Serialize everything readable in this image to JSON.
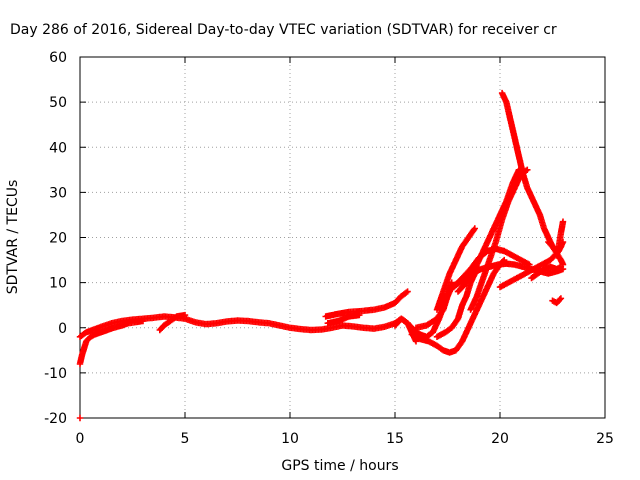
{
  "chart_data": {
    "type": "scatter",
    "title": "Day 286 of 2016, Sidereal Day-to-day VTEC variation (SDTVAR) for receiver cr",
    "xlabel": "GPS time / hours",
    "ylabel": "SDTVAR / TECUs",
    "xlim": [
      0,
      25
    ],
    "ylim": [
      -20,
      60
    ],
    "xticks": [
      0,
      5,
      10,
      15,
      20,
      25
    ],
    "yticks": [
      -20,
      -10,
      0,
      10,
      20,
      30,
      40,
      50,
      60
    ],
    "grid": true,
    "marker": "plus",
    "color": "#ff0000",
    "series": [
      {
        "x": [
          0,
          0.3,
          0.6,
          1.0,
          1.5,
          2.0,
          2.5,
          3.0,
          3.5,
          4.0,
          4.5,
          5.0,
          5.5,
          6.0,
          6.5,
          7.0,
          7.5,
          8.0,
          8.5,
          9.0,
          9.5,
          10.0,
          10.5,
          11.0,
          11.5,
          12.0,
          12.5,
          13.0,
          13.5,
          14.0,
          14.5,
          15.0,
          15.3,
          15.6,
          15.9,
          16.2,
          16.5,
          16.8,
          17.1,
          17.4,
          17.7,
          18.0
        ],
        "y": [
          -2,
          -1,
          -0.5,
          0.2,
          1.0,
          1.5,
          1.8,
          2.0,
          2.2,
          2.5,
          2.3,
          2.0,
          1.2,
          0.8,
          1.0,
          1.4,
          1.6,
          1.5,
          1.2,
          1.0,
          0.5,
          0,
          -0.3,
          -0.5,
          -0.4,
          0,
          0.5,
          0.3,
          0,
          -0.2,
          0.2,
          1.0,
          2.0,
          1.0,
          -0.5,
          -1.5,
          -2.0,
          -1.0,
          2.0,
          6.0,
          9.0,
          10.0
        ]
      },
      {
        "x": [
          0,
          0.1,
          0.2,
          0.3,
          0.5,
          0.7,
          1.0,
          1.3,
          1.6,
          2.0,
          2.3,
          2.6,
          3.0
        ],
        "y": [
          -8,
          -6,
          -4.5,
          -3,
          -2,
          -1.5,
          -1,
          -0.5,
          0,
          0.5,
          1.0,
          1.2,
          1.5
        ]
      },
      {
        "x": [
          3.8,
          4.0,
          4.3,
          4.6,
          5.0
        ],
        "y": [
          -0.5,
          0.5,
          1.5,
          2.5,
          2.8
        ]
      },
      {
        "x": [
          11.7,
          12.2,
          12.8,
          13.4,
          14.0,
          14.5,
          15.0,
          15.3,
          15.6
        ],
        "y": [
          2.5,
          3.0,
          3.5,
          3.7,
          4.0,
          4.5,
          5.5,
          7.0,
          8.0
        ]
      },
      {
        "x": [
          11.8,
          12.3,
          12.8,
          13.3
        ],
        "y": [
          1.0,
          1.5,
          2.5,
          2.8
        ]
      },
      {
        "x": [
          15.0,
          15.3,
          15.6,
          15.8,
          16.0
        ],
        "y": [
          0.5,
          2.0,
          1.0,
          -1.0,
          -3.0
        ]
      },
      {
        "x": [
          15.8,
          16.2,
          16.6,
          17.0,
          17.3,
          17.6,
          17.9,
          18.2,
          18.5,
          18.8,
          19.1,
          19.4,
          19.7,
          20.0,
          20.2
        ],
        "y": [
          -1.5,
          -2.5,
          -3.0,
          -4.0,
          -5.0,
          -5.5,
          -5.0,
          -3.0,
          0,
          3.0,
          6.0,
          9.0,
          12.0,
          14.0,
          15.0
        ]
      },
      {
        "x": [
          16.0,
          16.5,
          17.0,
          17.3,
          17.5,
          17.7
        ],
        "y": [
          0,
          0.5,
          2.0,
          4.0,
          7.0,
          10.0
        ]
      },
      {
        "x": [
          17.0,
          17.4,
          17.7,
          18.0,
          18.2,
          18.4,
          18.6,
          18.8,
          19.0
        ],
        "y": [
          -2,
          -1,
          0,
          2.0,
          5.0,
          7.0,
          10.0,
          12.0,
          13.0
        ]
      },
      {
        "x": [
          17.0,
          17.3,
          17.6,
          17.9,
          18.2,
          18.5,
          18.8
        ],
        "y": [
          4.0,
          8.0,
          12.0,
          15.0,
          18.0,
          20.0,
          22.0
        ]
      },
      {
        "x": [
          17.5,
          17.9,
          18.3,
          18.7,
          19.1,
          19.5,
          19.9,
          20.3,
          20.7,
          21.1,
          21.5,
          21.9,
          22.3,
          22.7,
          23.0
        ],
        "y": [
          8.5,
          9.5,
          10.5,
          12.0,
          13.0,
          13.5,
          14.0,
          14.2,
          14.0,
          13.5,
          13.0,
          12.5,
          12.0,
          12.5,
          13.0
        ]
      },
      {
        "x": [
          17.8,
          18.2,
          18.6,
          19.0,
          19.4,
          19.8,
          20.2,
          20.6,
          21.0,
          21.4
        ],
        "y": [
          9.0,
          11.0,
          13.0,
          15.5,
          17.0,
          17.5,
          17.0,
          16.0,
          15.0,
          14.0
        ]
      },
      {
        "x": [
          18.6,
          18.9,
          19.2,
          19.5,
          19.8,
          20.1,
          20.4,
          20.7,
          21.0,
          21.3
        ],
        "y": [
          4.0,
          7.0,
          11.0,
          15.0,
          19.0,
          24.0,
          28.0,
          31.0,
          34.0,
          35.0
        ]
      },
      {
        "x": [
          18.0,
          18.4,
          18.8,
          19.2,
          19.6,
          20.0,
          20.3,
          20.6,
          20.9
        ],
        "y": [
          8.0,
          10.0,
          13.0,
          17.0,
          21.0,
          25.0,
          28.0,
          32.0,
          35.0
        ]
      },
      {
        "x": [
          20.1,
          20.3,
          20.5,
          20.7,
          20.9,
          21.1,
          21.3,
          21.5,
          21.7,
          21.9,
          22.1,
          22.3,
          22.5,
          22.7,
          22.9,
          23.0
        ],
        "y": [
          52.0,
          50.0,
          46.0,
          42.0,
          38.0,
          34.0,
          31.0,
          29.0,
          27.0,
          25.0,
          22.0,
          20.0,
          18.0,
          16.5,
          15.0,
          14.0
        ]
      },
      {
        "x": [
          20.0,
          20.4,
          20.8,
          21.2,
          21.6,
          22.0,
          22.4,
          22.8,
          23.0
        ],
        "y": [
          9.0,
          10.0,
          11.0,
          12.0,
          13.0,
          14.0,
          15.0,
          17.0,
          19.0
        ]
      },
      {
        "x": [
          21.5,
          21.8,
          22.1,
          22.4,
          22.7,
          22.9
        ],
        "y": [
          11.0,
          12.0,
          13.0,
          13.5,
          13.0,
          13.5
        ]
      },
      {
        "x": [
          22.3,
          22.5,
          22.7,
          22.9
        ],
        "y": [
          19.0,
          18.0,
          17.0,
          18.0
        ]
      },
      {
        "x": [
          22.7,
          22.8,
          22.9,
          23.0
        ],
        "y": [
          16.0,
          18.0,
          21.0,
          23.5
        ]
      },
      {
        "x": [
          22.5,
          22.7,
          22.9
        ],
        "y": [
          6.0,
          5.5,
          6.5
        ]
      },
      {
        "x": [
          0
        ],
        "y": [
          -20
        ]
      }
    ]
  }
}
